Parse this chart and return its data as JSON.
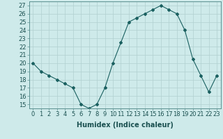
{
  "x": [
    0,
    1,
    2,
    3,
    4,
    5,
    6,
    7,
    8,
    9,
    10,
    11,
    12,
    13,
    14,
    15,
    16,
    17,
    18,
    19,
    20,
    21,
    22,
    23
  ],
  "y": [
    20,
    19,
    18.5,
    18,
    17.5,
    17,
    15,
    14.5,
    15,
    17,
    20,
    22.5,
    25,
    25.5,
    26,
    26.5,
    27,
    26.5,
    26,
    24,
    20.5,
    18.5,
    16.5,
    18.5
  ],
  "line_color": "#1a6060",
  "marker": "D",
  "marker_size": 2,
  "bg_color": "#ceeaea",
  "grid_color": "#b0d0d0",
  "xlabel": "Humidex (Indice chaleur)",
  "xlabel_fontsize": 7,
  "tick_fontsize": 6,
  "ylim": [
    14.5,
    27.5
  ],
  "xlim": [
    -0.5,
    23.5
  ],
  "yticks": [
    15,
    16,
    17,
    18,
    19,
    20,
    21,
    22,
    23,
    24,
    25,
    26,
    27
  ],
  "xticks": [
    0,
    1,
    2,
    3,
    4,
    5,
    6,
    7,
    8,
    9,
    10,
    11,
    12,
    13,
    14,
    15,
    16,
    17,
    18,
    19,
    20,
    21,
    22,
    23
  ]
}
